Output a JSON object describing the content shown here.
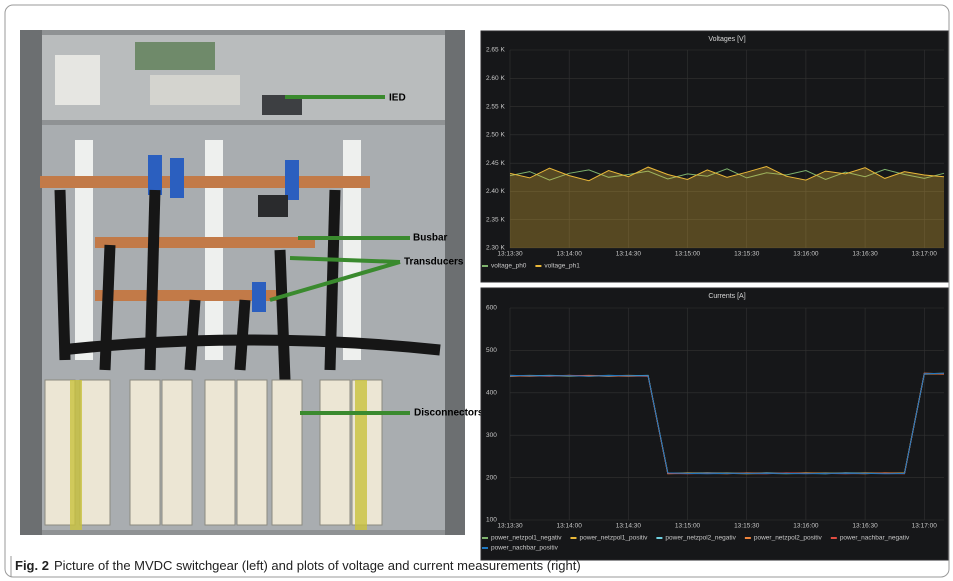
{
  "figure": {
    "photo_labels": [
      "IED",
      "Busbar",
      "Transducers",
      "Disconnectors"
    ],
    "caption": {
      "label": "Fig. 2",
      "text": "Picture of the MVDC switchgear (left) and plots of voltage and current measurements (right)"
    }
  },
  "chart_data": [
    {
      "type": "line",
      "title": "Voltages [V]",
      "area": true,
      "grid": true,
      "x": [
        "13:13:30",
        "13:13:40",
        "13:13:50",
        "13:14:00",
        "13:14:10",
        "13:14:20",
        "13:14:30",
        "13:14:40",
        "13:14:50",
        "13:15:00",
        "13:15:10",
        "13:15:20",
        "13:15:30",
        "13:15:40",
        "13:15:50",
        "13:16:00",
        "13:16:10",
        "13:16:20",
        "13:16:30",
        "13:16:40",
        "13:16:50",
        "13:17:00",
        "13:17:10"
      ],
      "ylim": [
        2300,
        2650
      ],
      "yticks": [
        {
          "value": 2300,
          "label": "2.30 K"
        },
        {
          "value": 2350,
          "label": "2.35 K"
        },
        {
          "value": 2400,
          "label": "2.40 K"
        },
        {
          "value": 2450,
          "label": "2.45 K"
        },
        {
          "value": 2500,
          "label": "2.50 K"
        },
        {
          "value": 2550,
          "label": "2.55 K"
        },
        {
          "value": 2600,
          "label": "2.60 K"
        },
        {
          "value": 2650,
          "label": "2.65 K"
        }
      ],
      "series": [
        {
          "name": "voltage_ph0",
          "color": "#7eb26d",
          "values": [
            2428,
            2435,
            2420,
            2432,
            2438,
            2425,
            2430,
            2436,
            2422,
            2431,
            2427,
            2440,
            2424,
            2433,
            2429,
            2437,
            2421,
            2434,
            2426,
            2439,
            2430,
            2423,
            2432
          ]
        },
        {
          "name": "voltage_ph1",
          "color": "#eab839",
          "values": [
            2432,
            2424,
            2441,
            2428,
            2419,
            2437,
            2426,
            2443,
            2430,
            2421,
            2438,
            2425,
            2434,
            2444,
            2427,
            2420,
            2436,
            2431,
            2442,
            2423,
            2435,
            2429,
            2426
          ]
        }
      ]
    },
    {
      "type": "line",
      "title": "Currents [A]",
      "grid": true,
      "x": [
        "13:13:30",
        "13:13:40",
        "13:13:50",
        "13:14:00",
        "13:14:10",
        "13:14:20",
        "13:14:30",
        "13:14:40",
        "13:14:50",
        "13:15:00",
        "13:15:10",
        "13:15:20",
        "13:15:30",
        "13:15:40",
        "13:15:50",
        "13:16:00",
        "13:16:10",
        "13:16:20",
        "13:16:30",
        "13:16:40",
        "13:16:50",
        "13:17:00",
        "13:17:10"
      ],
      "ylim": [
        100,
        600
      ],
      "yticks": [
        100,
        200,
        300,
        400,
        500,
        600
      ],
      "series": [
        {
          "name": "power_netzpol1_negativ",
          "color": "#7eb26d",
          "values": [
            440,
            441,
            440,
            439,
            440,
            441,
            440,
            440,
            211,
            210,
            210,
            211,
            210,
            210,
            209,
            210,
            211,
            210,
            210,
            210,
            210,
            445,
            446
          ]
        },
        {
          "name": "power_netzpol1_positiv",
          "color": "#eab839",
          "values": [
            441,
            440,
            440,
            441,
            439,
            440,
            441,
            440,
            210,
            211,
            210,
            210,
            209,
            210,
            210,
            211,
            210,
            210,
            211,
            210,
            211,
            446,
            445
          ]
        },
        {
          "name": "power_netzpol2_negativ",
          "color": "#6ed0e0",
          "values": [
            439,
            440,
            441,
            440,
            440,
            439,
            440,
            441,
            210,
            210,
            211,
            210,
            210,
            211,
            210,
            210,
            209,
            211,
            210,
            210,
            210,
            444,
            445
          ]
        },
        {
          "name": "power_netzpol2_positiv",
          "color": "#ef843c",
          "values": [
            440,
            439,
            440,
            440,
            441,
            440,
            439,
            440,
            209,
            210,
            210,
            209,
            211,
            210,
            210,
            210,
            210,
            210,
            209,
            211,
            210,
            445,
            444
          ]
        },
        {
          "name": "power_nachbar_negativ",
          "color": "#e24d42",
          "values": [
            440,
            440,
            439,
            441,
            440,
            440,
            440,
            439,
            210,
            209,
            210,
            210,
            210,
            209,
            211,
            210,
            210,
            209,
            210,
            210,
            209,
            446,
            445
          ]
        },
        {
          "name": "power_nachbar_positiv",
          "color": "#1f78c1",
          "values": [
            441,
            440,
            440,
            440,
            439,
            441,
            440,
            440,
            211,
            210,
            209,
            210,
            210,
            210,
            210,
            209,
            210,
            210,
            210,
            209,
            210,
            445,
            446
          ]
        }
      ]
    }
  ]
}
